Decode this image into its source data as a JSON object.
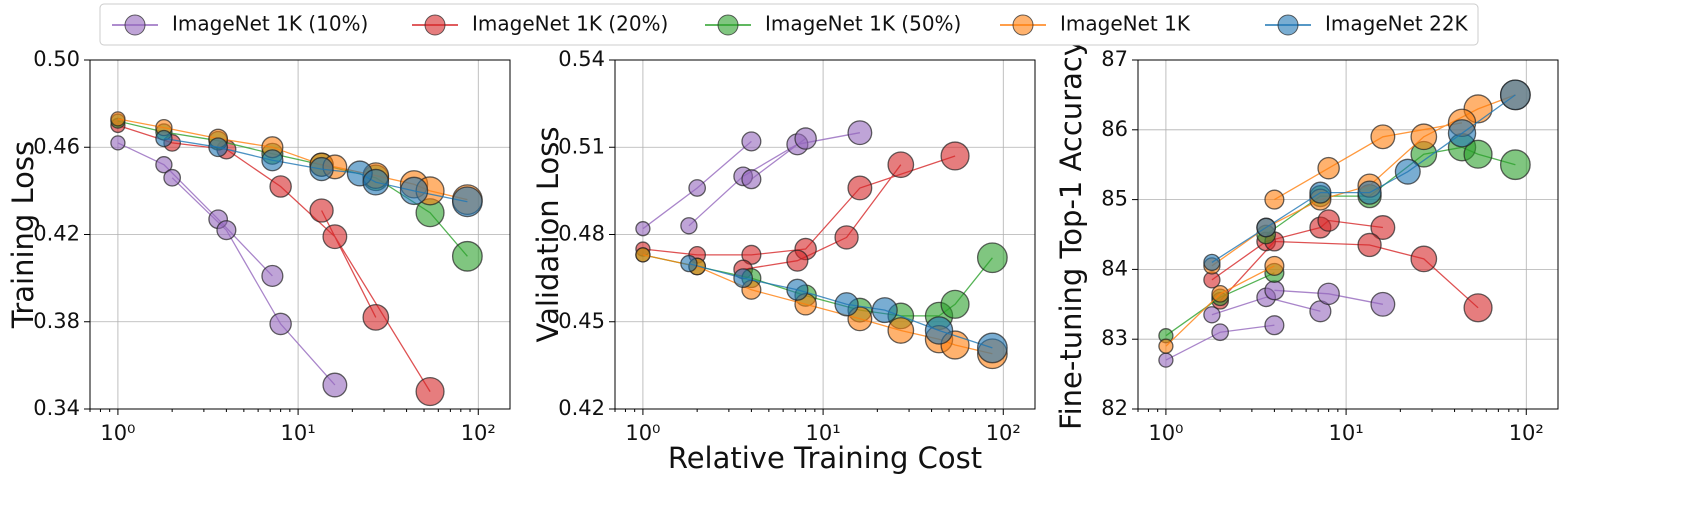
{
  "chart_data": [
    {
      "type": "line",
      "ylabel": "Training Loss",
      "xscale": "log",
      "grid": true,
      "legend": "top",
      "xlim": [
        0.7,
        150
      ],
      "ylim": [
        0.34,
        0.5
      ],
      "xticks": [
        {
          "value": 1,
          "label": "10⁰"
        },
        {
          "value": 10,
          "label": "10¹"
        },
        {
          "value": 100,
          "label": "10²"
        }
      ],
      "yticks": [
        0.34,
        0.38,
        0.42,
        0.46,
        {
          "value": 0.5,
          "label": "0.50"
        }
      ],
      "series": [
        {
          "name": "ImageNet 1K (10%)",
          "color": "#9467bd",
          "x": [
            1,
            1.8,
            3.6,
            7.2,
            null,
            2,
            4,
            8,
            16
          ],
          "values": [
            0.462,
            0.452,
            0.427,
            0.401,
            null,
            0.446,
            0.422,
            0.379,
            0.351
          ]
        },
        {
          "name": "ImageNet 1K (20%)",
          "color": "#d62728",
          "x": [
            1,
            2,
            4,
            8,
            16,
            54,
            null,
            13.5,
            27
          ],
          "values": [
            0.47,
            0.462,
            0.459,
            0.442,
            0.419,
            0.348,
            null,
            0.431,
            0.382
          ]
        },
        {
          "name": "ImageNet 1K (50%)",
          "color": "#2ca02c",
          "x": [
            1,
            1.8,
            3.6,
            7.2,
            13.5,
            27,
            54,
            87
          ],
          "values": [
            0.472,
            0.467,
            0.463,
            0.457,
            0.452,
            0.446,
            0.43,
            0.41
          ]
        },
        {
          "name": "ImageNet 1K",
          "color": "#ff7f0e",
          "x": [
            1,
            1.8,
            3.6,
            7.2,
            13.5,
            16,
            27,
            44,
            54,
            87
          ],
          "values": [
            0.473,
            0.469,
            0.464,
            0.46,
            0.452,
            0.451,
            0.447,
            0.443,
            0.44,
            0.436
          ]
        },
        {
          "name": "ImageNet 22K",
          "color": "#1f77b4",
          "x": [
            1.8,
            3.6,
            7.2,
            13.5,
            22,
            27,
            44,
            87
          ],
          "values": [
            0.464,
            0.46,
            0.454,
            0.45,
            0.448,
            0.444,
            0.44,
            0.435
          ]
        }
      ]
    },
    {
      "type": "line",
      "ylabel": "Validation Loss",
      "xlabel": "Relative Training Cost",
      "xscale": "log",
      "grid": true,
      "xlim": [
        0.7,
        150
      ],
      "ylim": [
        0.42,
        0.54
      ],
      "xticks": [
        {
          "value": 1,
          "label": "10⁰"
        },
        {
          "value": 10,
          "label": "10¹"
        },
        {
          "value": 100,
          "label": "10²"
        }
      ],
      "yticks": [
        0.42,
        0.45,
        0.48,
        0.51,
        0.54
      ],
      "series": [
        {
          "name": "ImageNet 1K (10%)",
          "color": "#9467bd",
          "x": [
            1,
            2,
            4,
            null,
            1.8,
            3.6,
            7.2,
            16,
            null,
            4,
            8
          ],
          "values": [
            0.482,
            0.496,
            0.512,
            null,
            0.483,
            0.5,
            0.511,
            0.515,
            null,
            0.499,
            0.513
          ]
        },
        {
          "name": "ImageNet 1K (20%)",
          "color": "#d62728",
          "x": [
            1,
            2,
            4,
            8,
            16,
            54,
            null,
            3.6,
            7.2,
            13.5,
            27
          ],
          "values": [
            0.475,
            0.473,
            0.473,
            0.475,
            0.496,
            0.507,
            null,
            0.468,
            0.471,
            0.479,
            0.504
          ]
        },
        {
          "name": "ImageNet 1K (50%)",
          "color": "#2ca02c",
          "x": [
            1,
            2,
            4,
            8,
            16,
            27,
            44,
            54,
            87
          ],
          "values": [
            0.473,
            0.469,
            0.465,
            0.459,
            0.454,
            0.452,
            0.452,
            0.456,
            0.472
          ]
        },
        {
          "name": "ImageNet 1K",
          "color": "#ff7f0e",
          "x": [
            1,
            2,
            4,
            8,
            16,
            27,
            44,
            54,
            87
          ],
          "values": [
            0.473,
            0.469,
            0.461,
            0.456,
            0.451,
            0.447,
            0.444,
            0.442,
            0.439
          ]
        },
        {
          "name": "ImageNet 22K",
          "color": "#1f77b4",
          "x": [
            1.8,
            3.6,
            7.2,
            13.5,
            22,
            44,
            87
          ],
          "values": [
            0.47,
            0.465,
            0.461,
            0.456,
            0.454,
            0.447,
            0.441
          ]
        }
      ]
    },
    {
      "type": "line",
      "ylabel": "Fine-tuning Top-1 Accuracy",
      "xscale": "log",
      "grid": true,
      "xlim": [
        0.7,
        150
      ],
      "ylim": [
        82,
        87
      ],
      "xticks": [
        {
          "value": 1,
          "label": "10⁰"
        },
        {
          "value": 10,
          "label": "10¹"
        },
        {
          "value": 100,
          "label": "10²"
        }
      ],
      "yticks": [
        82,
        83,
        84,
        85,
        86,
        87
      ],
      "series": [
        {
          "name": "ImageNet 1K (10%)",
          "color": "#9467bd",
          "x": [
            1,
            2,
            4,
            null,
            1.8,
            3.6,
            7.2,
            null,
            4,
            8,
            16
          ],
          "values": [
            82.7,
            83.1,
            83.2,
            null,
            83.35,
            83.6,
            83.4,
            null,
            83.7,
            83.65,
            83.5
          ]
        },
        {
          "name": "ImageNet 1K (20%)",
          "color": "#d62728",
          "x": [
            1.8,
            3.6,
            7.2,
            8,
            16,
            null,
            2,
            4,
            13.5,
            27,
            54
          ],
          "values": [
            83.85,
            84.4,
            84.6,
            84.7,
            84.6,
            null,
            83.55,
            84.4,
            84.35,
            84.15,
            83.45
          ]
        },
        {
          "name": "ImageNet 1K (50%)",
          "color": "#2ca02c",
          "x": [
            1,
            2,
            4,
            null,
            3.6,
            7.2,
            13.5,
            27,
            44,
            54,
            87
          ],
          "values": [
            83.05,
            83.6,
            83.95,
            null,
            84.5,
            85.05,
            85.05,
            85.65,
            85.75,
            85.65,
            85.5
          ]
        },
        {
          "name": "ImageNet 1K",
          "color": "#ff7f0e",
          "x": [
            1,
            2,
            4,
            null,
            1.8,
            3.6,
            7.2,
            13.5,
            27,
            54,
            87,
            null,
            4,
            8,
            16,
            44
          ],
          "values": [
            82.9,
            83.65,
            84.05,
            null,
            84.05,
            84.6,
            85.0,
            85.2,
            85.9,
            86.3,
            86.5,
            null,
            85.0,
            85.45,
            85.9,
            86.1
          ]
        },
        {
          "name": "ImageNet 22K",
          "color": "#1f77b4",
          "x": [
            1.8,
            3.6,
            7.2,
            13.5,
            22,
            44,
            87
          ],
          "values": [
            84.1,
            84.6,
            85.1,
            85.1,
            85.4,
            85.95,
            86.5
          ]
        }
      ]
    }
  ]
}
